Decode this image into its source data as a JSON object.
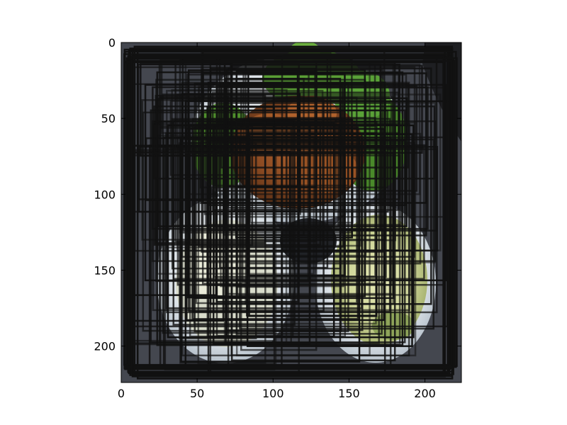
{
  "image": {
    "description_icon": "photo-of-food-plates",
    "colors": {
      "frame": "#000000",
      "tray": "#4a4d55",
      "box_stroke": "#111111",
      "greens": "#4a8a2a",
      "meat": "#8a4a22",
      "plate": "#e8ecef",
      "cabbage": "#d8dca0"
    }
  },
  "axes": {
    "x": {
      "ticks": [
        0,
        50,
        100,
        150,
        200
      ],
      "range": [
        0,
        224
      ]
    },
    "y": {
      "ticks": [
        0,
        50,
        100,
        150,
        200
      ],
      "range": [
        0,
        224
      ],
      "inverted": true
    }
  },
  "labels": {
    "x_ticks": [
      "0",
      "50",
      "100",
      "150",
      "200"
    ],
    "y_ticks": [
      "0",
      "50",
      "100",
      "150",
      "200"
    ]
  }
}
